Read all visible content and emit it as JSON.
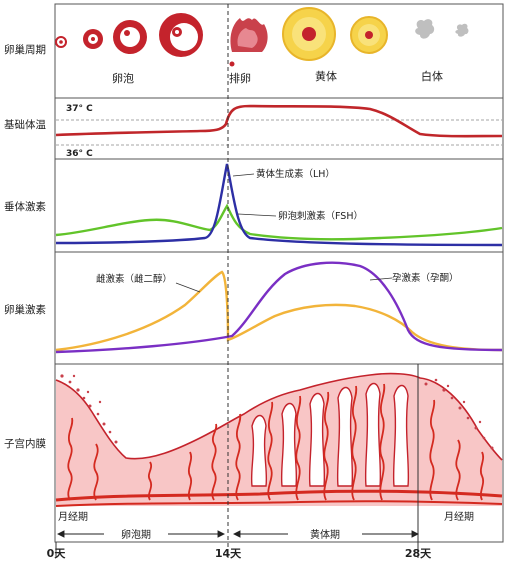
{
  "row_labels": {
    "ovarian_cycle": "卵巢周期",
    "basal_temp": "基础体温",
    "pituitary": "垂体激素",
    "ovarian_hormone": "卵巢激素",
    "endometrium": "子宫内膜"
  },
  "stage_labels": {
    "follicle": "卵泡",
    "ovulation": "排卵",
    "corpus_luteum": "黄体",
    "corpus_albicans": "白体"
  },
  "temp_labels": {
    "high": "37° C",
    "low": "36° C"
  },
  "hormone_labels": {
    "lh": "黄体生成素（LH）",
    "fsh": "卵泡刺激素（FSH）",
    "estrogen": "雌激素（雌二醇）",
    "progesterone": "孕激素（孕酮）"
  },
  "phase_labels": {
    "menstrual_left": "月经期",
    "menstrual_right": "月经期",
    "follicular": "卵泡期",
    "luteal": "黄体期"
  },
  "day_labels": {
    "d0": "0天",
    "d14": "14天",
    "d28": "28天"
  },
  "colors": {
    "border": "#555555",
    "temp": "#c0262a",
    "lh": "#2d2fa5",
    "fsh": "#62c42a",
    "estrogen": "#f2b43a",
    "progesterone": "#7a2fc4",
    "endometrium_fill": "#f8c6c6",
    "vessel": "#d42a20"
  }
}
